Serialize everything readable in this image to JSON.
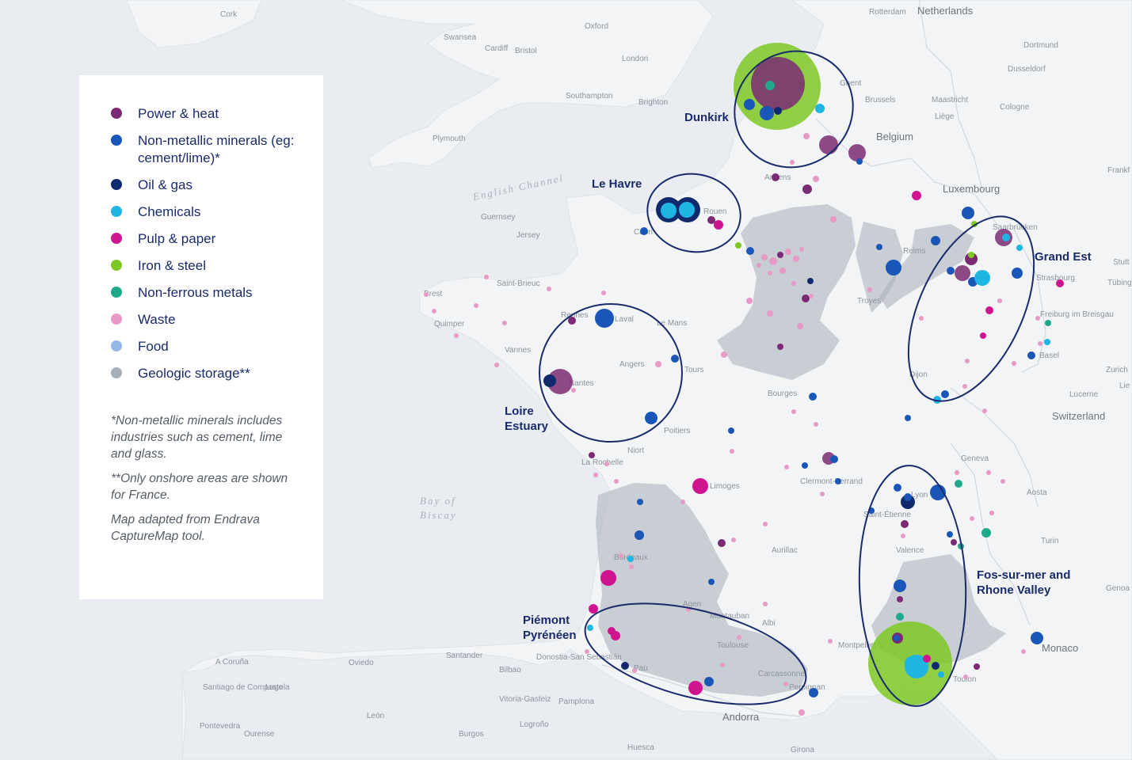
{
  "legend": {
    "items": [
      {
        "label": "Power & heat",
        "color": "#7b2a73"
      },
      {
        "label": "Non-metallic minerals (eg: cement/lime)*",
        "color": "#1a55b8"
      },
      {
        "label": "Oil & gas",
        "color": "#112a6e"
      },
      {
        "label": "Chemicals",
        "color": "#1fb5e3"
      },
      {
        "label": "Pulp & paper",
        "color": "#d0138f"
      },
      {
        "label": "Iron & steel",
        "color": "#7ec823"
      },
      {
        "label": "Non-ferrous metals",
        "color": "#1fa88a"
      },
      {
        "label": "Waste",
        "color": "#e79ac6"
      },
      {
        "label": "Food",
        "color": "#93b7e6"
      },
      {
        "label": "Geologic storage**",
        "color": "#a6aeb8"
      }
    ],
    "notes": [
      "*Non-metallic minerals includes industries such as cement, lime and glass.",
      "**Only onshore areas are shown for France.",
      "Map adapted from Endrava CaptureMap tool."
    ]
  },
  "clusters": [
    {
      "label_lines": [
        "Dunkirk"
      ]
    },
    {
      "label_lines": [
        "Le Havre"
      ]
    },
    {
      "label_lines": [
        "Grand Est"
      ]
    },
    {
      "label_lines": [
        "Loire",
        "Estuary"
      ]
    },
    {
      "label_lines": [
        "Fos-sur-mer and",
        "Rhone Valley"
      ]
    },
    {
      "label_lines": [
        "Piémont",
        "Pyrénéen"
      ]
    }
  ],
  "seas": [
    "English Channel",
    "Bay of",
    "Biscay"
  ],
  "countries": [
    "Netherlands",
    "Belgium",
    "Luxembourg",
    "Switzerland",
    "Monaco",
    "Andorra"
  ],
  "places": [
    "Cork",
    "Swansea",
    "Oxford",
    "Cardiff",
    "Bristol",
    "London",
    "Southampton",
    "Brighton",
    "Plymouth",
    "Guernsey",
    "Jersey",
    "Rotterdam",
    "Dortmund",
    "Dusseldorf",
    "Cologne",
    "Ghent",
    "Brussels",
    "Maastricht",
    "Liège",
    "Frankf",
    "Saarbrücken",
    "Strasbourg",
    "Tübingen",
    "Stutt",
    "Freiburg im Breisgau",
    "Basel",
    "Zurich",
    "Lie",
    "Lucerne",
    "Geneva",
    "Aosta",
    "Turin",
    "Genoa",
    "Amiens",
    "Rouen",
    "Caen",
    "Troyes",
    "Dijon",
    "Reims",
    "Saint-Brieuc",
    "Brest",
    "Quimper",
    "Rennes",
    "Laval",
    "Le Mans",
    "Vannes",
    "Angers",
    "Tours",
    "Nantes",
    "Bourges",
    "Poitiers",
    "Niort",
    "La Rochelle",
    "Limoges",
    "Clermont-Ferrand",
    "Saint-Étienne",
    "Lyon",
    "Valence",
    "Aurillac",
    "Bordeaux",
    "Agen",
    "Montauban",
    "Albi",
    "Toulouse",
    "Carcassonne",
    "Montpellier",
    "Perpignan",
    "Toulon",
    "Pau",
    "Bilbao",
    "Donostia-San Sebastián",
    "Santander",
    "Oviedo",
    "A Coruña",
    "Lugo",
    "Santiago de Compostela",
    "Vitoria-Gasteiz",
    "Pamplona",
    "León",
    "Burgos",
    "Logroño",
    "Ourense",
    "Pontevedra",
    "Huesca",
    "Girona"
  ]
}
